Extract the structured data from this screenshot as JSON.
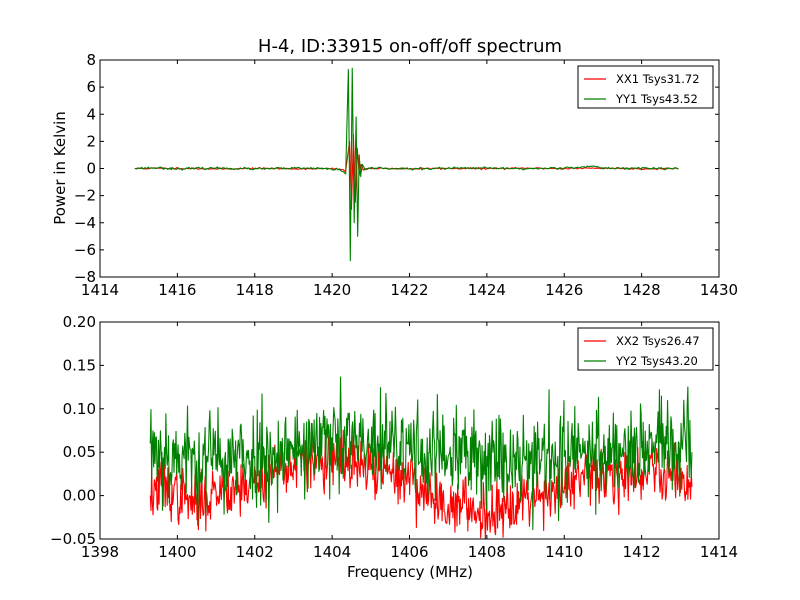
{
  "chart_data": [
    {
      "type": "line",
      "title": "H-4, ID:33915 on-off/off spectrum",
      "xlabel": "",
      "ylabel": "Power in Kelvin",
      "xlim": [
        1414,
        1430
      ],
      "ylim": [
        -8,
        8
      ],
      "xticks": [
        1414,
        1416,
        1418,
        1420,
        1422,
        1424,
        1426,
        1428,
        1430
      ],
      "yticks": [
        -8,
        -6,
        -4,
        -2,
        0,
        2,
        4,
        6,
        8
      ],
      "legend_position": "top-right",
      "colors": {
        "XX1 Tsys31.72": "#ff0000",
        "YY1 Tsys43.52": "#008000"
      },
      "series": [
        {
          "name": "XX1 Tsys31.72",
          "color": "#ff0000",
          "x": [
            1414.9,
            1416.0,
            1417.0,
            1418.0,
            1419.0,
            1419.8,
            1420.2,
            1420.35,
            1420.45,
            1420.5,
            1420.55,
            1420.6,
            1420.65,
            1420.7,
            1420.75,
            1420.8,
            1421.0,
            1422.0,
            1423.0,
            1424.0,
            1425.0,
            1426.0,
            1427.0,
            1428.0,
            1428.95
          ],
          "y": [
            0.0,
            0.02,
            -0.03,
            0.01,
            -0.02,
            0.0,
            -0.05,
            -0.2,
            2.0,
            -3.0,
            2.5,
            -2.5,
            1.5,
            -0.5,
            0.3,
            -0.1,
            0.02,
            -0.02,
            0.01,
            -0.01,
            0.02,
            0.0,
            0.03,
            -0.02,
            0.0
          ]
        },
        {
          "name": "YY1 Tsys43.52",
          "color": "#008000",
          "x": [
            1414.9,
            1415.5,
            1416.0,
            1417.0,
            1418.0,
            1419.0,
            1419.8,
            1420.2,
            1420.35,
            1420.42,
            1420.47,
            1420.52,
            1420.57,
            1420.62,
            1420.66,
            1420.7,
            1420.74,
            1420.78,
            1420.85,
            1421.0,
            1422.0,
            1423.0,
            1424.0,
            1425.0,
            1426.0,
            1426.7,
            1427.0,
            1428.0,
            1428.95
          ],
          "y": [
            0.02,
            0.05,
            -0.02,
            0.03,
            -0.03,
            0.02,
            0.0,
            -0.1,
            -0.4,
            7.3,
            -6.8,
            7.4,
            -4.0,
            3.8,
            -5.0,
            1.0,
            -0.6,
            0.3,
            -0.1,
            0.05,
            -0.03,
            0.02,
            0.03,
            -0.02,
            0.05,
            0.15,
            0.03,
            0.02,
            0.0
          ]
        }
      ]
    },
    {
      "type": "line",
      "title": "",
      "xlabel": "Frequency (MHz)",
      "ylabel": "",
      "xlim": [
        1398,
        1414
      ],
      "ylim": [
        -0.05,
        0.2
      ],
      "xticks": [
        1398,
        1400,
        1402,
        1404,
        1406,
        1408,
        1410,
        1412,
        1414
      ],
      "yticks": [
        -0.05,
        0.0,
        0.05,
        0.1,
        0.15,
        0.2
      ],
      "legend_position": "top-right",
      "colors": {
        "XX2 Tsys26.47": "#ff0000",
        "YY2 Tsys43.20": "#008000"
      },
      "series": [
        {
          "name": "XX2 Tsys26.47",
          "color": "#ff0000",
          "x": [
            1399.3,
            1399.6,
            1400.0,
            1400.5,
            1401.0,
            1401.5,
            1402.0,
            1402.5,
            1403.0,
            1403.5,
            1404.0,
            1404.5,
            1405.0,
            1405.5,
            1406.0,
            1406.5,
            1407.0,
            1407.5,
            1408.0,
            1408.5,
            1409.0,
            1409.5,
            1410.0,
            1410.5,
            1411.0,
            1411.5,
            1412.0,
            1412.5,
            1413.0,
            1413.3
          ],
          "y": [
            0.0,
            0.01,
            0.0,
            -0.01,
            0.005,
            0.01,
            0.015,
            0.03,
            0.035,
            0.04,
            0.04,
            0.035,
            0.03,
            0.025,
            0.02,
            0.0,
            -0.01,
            -0.015,
            -0.02,
            -0.01,
            0.0,
            0.005,
            0.01,
            0.02,
            0.025,
            0.025,
            0.03,
            0.03,
            0.02,
            0.01
          ]
        },
        {
          "name": "YY2 Tsys43.20",
          "color": "#008000",
          "x": [
            1399.3,
            1399.6,
            1400.0,
            1400.5,
            1401.0,
            1401.5,
            1402.0,
            1402.5,
            1403.0,
            1403.5,
            1404.0,
            1404.5,
            1405.0,
            1405.5,
            1406.0,
            1406.5,
            1407.0,
            1407.5,
            1408.0,
            1408.5,
            1409.0,
            1409.5,
            1410.0,
            1410.5,
            1411.0,
            1411.5,
            1412.0,
            1412.5,
            1413.0,
            1413.3
          ],
          "y": [
            0.06,
            0.05,
            0.045,
            0.04,
            0.045,
            0.04,
            0.045,
            0.05,
            0.055,
            0.06,
            0.06,
            0.06,
            0.055,
            0.055,
            0.055,
            0.05,
            0.045,
            0.045,
            0.045,
            0.045,
            0.045,
            0.045,
            0.045,
            0.05,
            0.05,
            0.055,
            0.055,
            0.06,
            0.055,
            0.05
          ]
        }
      ]
    }
  ]
}
